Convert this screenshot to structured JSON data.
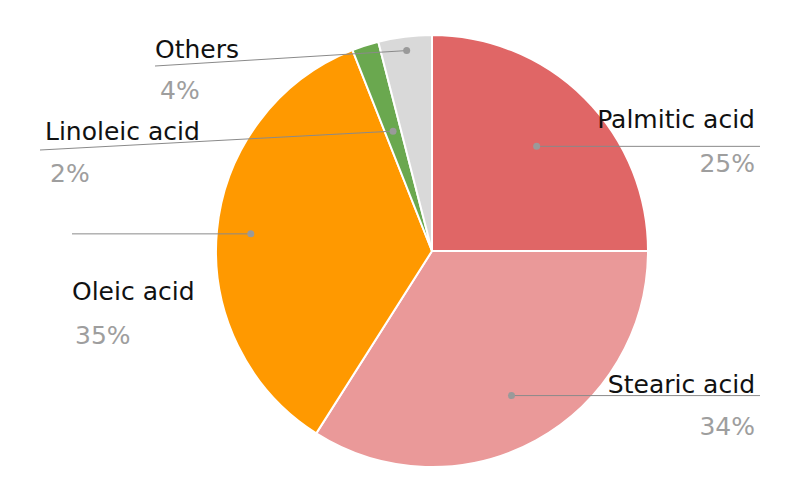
{
  "chart_data": {
    "type": "pie",
    "categories": [
      "Palmitic acid",
      "Stearic acid",
      "Oleic acid",
      "Linoleic acid",
      "Others"
    ],
    "values": [
      25,
      34,
      35,
      2,
      4
    ],
    "value_labels": [
      "25%",
      "34%",
      "35%",
      "2%",
      "4%"
    ],
    "colors": [
      "#e06666",
      "#ea9999",
      "#ff9900",
      "#6aa84f",
      "#d9d9d9"
    ],
    "data_labels": true
  }
}
